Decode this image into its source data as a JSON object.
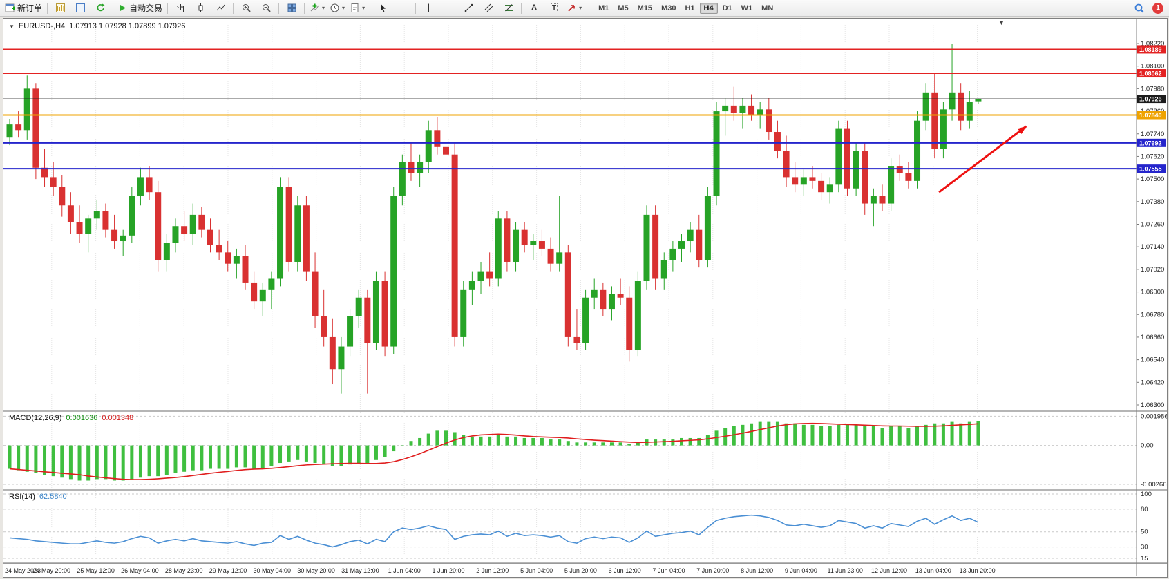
{
  "toolbar": {
    "new_order_label": "新订单",
    "autotrading_label": "自动交易",
    "text_tool_label": "A",
    "label_tool_label": "T",
    "timeframes": [
      "M1",
      "M5",
      "M15",
      "M30",
      "H1",
      "H4",
      "D1",
      "W1",
      "MN"
    ],
    "active_timeframe": "H4",
    "notification_count": "1"
  },
  "chart": {
    "title": "EURUSD-,H4",
    "ohlc": "1.07913 1.07928 1.07899 1.07926"
  },
  "indicators": {
    "macd": {
      "label": "MACD(12,26,9)",
      "value_main": "0.001636",
      "value_signal": "0.001348"
    },
    "rsi": {
      "label": "RSI(14)",
      "value": "62.5840"
    }
  },
  "colors": {
    "up": "#26a326",
    "down": "#d93131",
    "macd_bar": "#3fbf3f",
    "macd_signal": "#e01e1e",
    "rsi_line": "#4a8fd4",
    "grid": "#e4e4e4",
    "level_dash": "#c9c9c9",
    "red_line": "#e32222",
    "blue_line": "#2525cc",
    "orange_line": "#efa300",
    "current_line": "#1c1c1c"
  },
  "chart_data": [
    {
      "type": "candlestick",
      "symbol": "EURUSD-",
      "timeframe": "H4",
      "ylim": [
        1.063,
        1.0822
      ],
      "price_axis": [
        "1.08220",
        "1.08100",
        "1.07980",
        "1.07860",
        "1.07740",
        "1.07620",
        "1.07500",
        "1.07380",
        "1.07260",
        "1.07140",
        "1.07020",
        "1.06900",
        "1.06780",
        "1.06660",
        "1.06540",
        "1.06420",
        "1.06300"
      ],
      "time_axis": [
        "24 May 2023",
        "24 May 20:00",
        "25 May 12:00",
        "26 May 04:00",
        "28 May 23:00",
        "29 May 12:00",
        "30 May 04:00",
        "30 May 20:00",
        "31 May 12:00",
        "1 Jun 04:00",
        "1 Jun 20:00",
        "2 Jun 12:00",
        "5 Jun 04:00",
        "5 Jun 20:00",
        "6 Jun 12:00",
        "7 Jun 04:00",
        "7 Jun 20:00",
        "8 Jun 12:00",
        "9 Jun 04:00",
        "11 Jun 23:00",
        "12 Jun 12:00",
        "13 Jun 04:00",
        "13 Jun 20:00"
      ],
      "hlines": [
        {
          "price": 1.08189,
          "label": "1.08189",
          "color": "#e32222",
          "width": 2
        },
        {
          "price": 1.08062,
          "label": "1.08062",
          "color": "#e32222",
          "width": 2
        },
        {
          "price": 1.07926,
          "label": "1.07926",
          "color": "#1c1c1c",
          "width": 1
        },
        {
          "price": 1.0784,
          "label": "1.07840",
          "color": "#efa300",
          "width": 2
        },
        {
          "price": 1.07692,
          "label": "1.07692",
          "color": "#2525cc",
          "width": 2
        },
        {
          "price": 1.07555,
          "label": "1.07555",
          "color": "#2525cc",
          "width": 2
        }
      ],
      "arrow": {
        "from": {
          "bar": 106.5,
          "price": 1.0743
        },
        "to": {
          "bar": 116.5,
          "price": 1.0778
        },
        "color": "#ee1111"
      },
      "candles": [
        [
          1.0772,
          1.0782,
          1.0768,
          1.0779
        ],
        [
          1.0779,
          1.0786,
          1.0772,
          1.0776
        ],
        [
          1.0776,
          1.0805,
          1.0771,
          1.0798
        ],
        [
          1.0798,
          1.0801,
          1.075,
          1.0756
        ],
        [
          1.0756,
          1.0766,
          1.0746,
          1.0751
        ],
        [
          1.0751,
          1.0759,
          1.0741,
          1.0746
        ],
        [
          1.0746,
          1.0752,
          1.073,
          1.0736
        ],
        [
          1.0736,
          1.0743,
          1.0721,
          1.0727
        ],
        [
          1.0727,
          1.0736,
          1.0716,
          1.0721
        ],
        [
          1.0721,
          1.0731,
          1.0711,
          1.0729
        ],
        [
          1.0729,
          1.0739,
          1.0723,
          1.0733
        ],
        [
          1.0733,
          1.0737,
          1.0719,
          1.0723
        ],
        [
          1.0723,
          1.0731,
          1.0713,
          1.0717
        ],
        [
          1.0717,
          1.0723,
          1.0709,
          1.072
        ],
        [
          1.072,
          1.0746,
          1.0716,
          1.0741
        ],
        [
          1.0741,
          1.0756,
          1.0736,
          1.0751
        ],
        [
          1.0751,
          1.0757,
          1.0739,
          1.0743
        ],
        [
          1.0743,
          1.0749,
          1.0701,
          1.0707
        ],
        [
          1.0707,
          1.0721,
          1.0701,
          1.0716
        ],
        [
          1.0716,
          1.0729,
          1.0711,
          1.0725
        ],
        [
          1.0725,
          1.0733,
          1.0717,
          1.0721
        ],
        [
          1.0721,
          1.0737,
          1.0715,
          1.0731
        ],
        [
          1.0731,
          1.0735,
          1.0719,
          1.0723
        ],
        [
          1.0723,
          1.0729,
          1.0711,
          1.0715
        ],
        [
          1.0715,
          1.0723,
          1.0707,
          1.0711
        ],
        [
          1.0711,
          1.0717,
          1.0701,
          1.0705
        ],
        [
          1.0705,
          1.0713,
          1.0697,
          1.0709
        ],
        [
          1.0709,
          1.0715,
          1.0691,
          1.0695
        ],
        [
          1.0695,
          1.0701,
          1.0681,
          1.0685
        ],
        [
          1.0685,
          1.0695,
          1.0677,
          1.0691
        ],
        [
          1.0691,
          1.0701,
          1.0681,
          1.0697
        ],
        [
          1.0697,
          1.0751,
          1.0693,
          1.0746
        ],
        [
          1.0746,
          1.0751,
          1.0701,
          1.0706
        ],
        [
          1.0706,
          1.0741,
          1.0701,
          1.0736
        ],
        [
          1.0736,
          1.0741,
          1.0696,
          1.0701
        ],
        [
          1.0701,
          1.0711,
          1.0671,
          1.0677
        ],
        [
          1.0677,
          1.0691,
          1.0661,
          1.0666
        ],
        [
          1.0666,
          1.0676,
          1.0641,
          1.0649
        ],
        [
          1.0649,
          1.0666,
          1.0636,
          1.0661
        ],
        [
          1.0661,
          1.0681,
          1.0656,
          1.0677
        ],
        [
          1.0677,
          1.0691,
          1.0671,
          1.0687
        ],
        [
          1.0687,
          1.0691,
          1.0636,
          1.0663
        ],
        [
          1.0663,
          1.0701,
          1.0659,
          1.0696
        ],
        [
          1.0696,
          1.0701,
          1.0656,
          1.0661
        ],
        [
          1.0661,
          1.0746,
          1.0657,
          1.0741
        ],
        [
          1.0741,
          1.0763,
          1.0736,
          1.0759
        ],
        [
          1.0759,
          1.0769,
          1.0749,
          1.0753
        ],
        [
          1.0753,
          1.0763,
          1.0746,
          1.0759
        ],
        [
          1.0759,
          1.0781,
          1.0753,
          1.0776
        ],
        [
          1.0776,
          1.0783,
          1.0763,
          1.0767
        ],
        [
          1.0767,
          1.0773,
          1.0759,
          1.0763
        ],
        [
          1.0763,
          1.0769,
          1.0661,
          1.0666
        ],
        [
          1.0666,
          1.0696,
          1.0661,
          1.0691
        ],
        [
          1.0691,
          1.0701,
          1.0683,
          1.0696
        ],
        [
          1.0696,
          1.0706,
          1.0689,
          1.0701
        ],
        [
          1.0701,
          1.0711,
          1.0693,
          1.0697
        ],
        [
          1.0697,
          1.0733,
          1.0693,
          1.0729
        ],
        [
          1.0729,
          1.0733,
          1.0701,
          1.0706
        ],
        [
          1.0706,
          1.0727,
          1.0701,
          1.0723
        ],
        [
          1.0723,
          1.0727,
          1.0711,
          1.0715
        ],
        [
          1.0715,
          1.0721,
          1.0707,
          1.0717
        ],
        [
          1.0717,
          1.0723,
          1.0709,
          1.0713
        ],
        [
          1.0713,
          1.0719,
          1.0701,
          1.0705
        ],
        [
          1.0705,
          1.0741,
          1.0701,
          1.0711
        ],
        [
          1.0711,
          1.0715,
          1.0661,
          1.0666
        ],
        [
          1.0666,
          1.0681,
          1.0659,
          1.0663
        ],
        [
          1.0663,
          1.0691,
          1.0659,
          1.0687
        ],
        [
          1.0687,
          1.0697,
          1.0681,
          1.0691
        ],
        [
          1.0691,
          1.0695,
          1.0677,
          1.0681
        ],
        [
          1.0681,
          1.0693,
          1.0675,
          1.0689
        ],
        [
          1.0689,
          1.0697,
          1.0683,
          1.0687
        ],
        [
          1.0687,
          1.0693,
          1.0653,
          1.0659
        ],
        [
          1.0659,
          1.0701,
          1.0656,
          1.0696
        ],
        [
          1.0696,
          1.0736,
          1.0691,
          1.0731
        ],
        [
          1.0731,
          1.0736,
          1.0691,
          1.0697
        ],
        [
          1.0697,
          1.0711,
          1.0691,
          1.0707
        ],
        [
          1.0707,
          1.0717,
          1.0701,
          1.0713
        ],
        [
          1.0713,
          1.0721,
          1.0706,
          1.0717
        ],
        [
          1.0717,
          1.0727,
          1.0711,
          1.0723
        ],
        [
          1.0723,
          1.0731,
          1.0703,
          1.0707
        ],
        [
          1.0707,
          1.0746,
          1.0703,
          1.0741
        ],
        [
          1.0741,
          1.0791,
          1.0736,
          1.0786
        ],
        [
          1.0786,
          1.0793,
          1.0773,
          1.0789
        ],
        [
          1.0789,
          1.0799,
          1.0781,
          1.0785
        ],
        [
          1.0785,
          1.0793,
          1.0777,
          1.0789
        ],
        [
          1.0789,
          1.0795,
          1.0781,
          1.0784
        ],
        [
          1.0784,
          1.0791,
          1.0777,
          1.0787
        ],
        [
          1.0787,
          1.0793,
          1.0771,
          1.0775
        ],
        [
          1.0775,
          1.0781,
          1.0761,
          1.0765
        ],
        [
          1.0765,
          1.0773,
          1.0746,
          1.0751
        ],
        [
          1.0751,
          1.0759,
          1.0743,
          1.0747
        ],
        [
          1.0747,
          1.0755,
          1.0741,
          1.0751
        ],
        [
          1.0751,
          1.0757,
          1.0745,
          1.0749
        ],
        [
          1.0749,
          1.0753,
          1.0739,
          1.0743
        ],
        [
          1.0743,
          1.0751,
          1.0737,
          1.0747
        ],
        [
          1.0747,
          1.0781,
          1.0743,
          1.0777
        ],
        [
          1.0777,
          1.0781,
          1.0741,
          1.0745
        ],
        [
          1.0745,
          1.0769,
          1.0741,
          1.0765
        ],
        [
          1.0765,
          1.0769,
          1.0731,
          1.0737
        ],
        [
          1.0737,
          1.0745,
          1.0725,
          1.0741
        ],
        [
          1.0741,
          1.0747,
          1.0733,
          1.0737
        ],
        [
          1.0737,
          1.0761,
          1.0733,
          1.0757
        ],
        [
          1.0757,
          1.0763,
          1.0749,
          1.0753
        ],
        [
          1.0753,
          1.0759,
          1.0745,
          1.0749
        ],
        [
          1.0749,
          1.0786,
          1.0745,
          1.0781
        ],
        [
          1.0781,
          1.0801,
          1.0776,
          1.0796
        ],
        [
          1.0796,
          1.0806,
          1.0761,
          1.0766
        ],
        [
          1.0766,
          1.0791,
          1.0761,
          1.0787
        ],
        [
          1.0787,
          1.0822,
          1.0781,
          1.0796
        ],
        [
          1.0796,
          1.0801,
          1.0776,
          1.0781
        ],
        [
          1.0781,
          1.0797,
          1.0777,
          1.0791
        ],
        [
          1.07913,
          1.07928,
          1.07899,
          1.07926
        ]
      ]
    },
    {
      "type": "bar",
      "name": "MACD(12,26,9)",
      "main_last": 0.001636,
      "signal_last": 0.001348,
      "axis": [
        "0.001986",
        "0.00",
        "-0.00266"
      ],
      "values": [
        -0.0016,
        -0.0017,
        -0.0018,
        -0.0019,
        -0.002,
        -0.0021,
        -0.0022,
        -0.0023,
        -0.0024,
        -0.0024,
        -0.0023,
        -0.0023,
        -0.0024,
        -0.0024,
        -0.0023,
        -0.0022,
        -0.0021,
        -0.0021,
        -0.002,
        -0.0019,
        -0.0018,
        -0.0017,
        -0.0017,
        -0.0016,
        -0.0016,
        -0.0016,
        -0.0015,
        -0.0015,
        -0.0016,
        -0.0016,
        -0.0014,
        -0.0012,
        -0.0011,
        -0.001,
        -0.0011,
        -0.0012,
        -0.0013,
        -0.0014,
        -0.0014,
        -0.0013,
        -0.0012,
        -0.0012,
        -0.001,
        -0.0008,
        -0.0004,
        0.0,
        0.0003,
        0.0005,
        0.0008,
        0.001,
        0.001,
        0.0009,
        0.0007,
        0.0006,
        0.0006,
        0.0006,
        0.0007,
        0.0006,
        0.0006,
        0.0005,
        0.0005,
        0.0005,
        0.0004,
        0.0004,
        0.0003,
        0.0002,
        0.0002,
        0.0002,
        0.0002,
        0.0002,
        0.0002,
        0.0001,
        0.0002,
        0.0004,
        0.0004,
        0.0004,
        0.0004,
        0.0005,
        0.0005,
        0.0005,
        0.0007,
        0.001,
        0.0012,
        0.0013,
        0.0014,
        0.0015,
        0.0016,
        0.0016,
        0.0016,
        0.0015,
        0.0015,
        0.0014,
        0.0014,
        0.0013,
        0.0013,
        0.0014,
        0.0014,
        0.0014,
        0.0013,
        0.0013,
        0.0012,
        0.0013,
        0.0013,
        0.0012,
        0.0013,
        0.0014,
        0.0015,
        0.0015,
        0.0016,
        0.0015,
        0.0016,
        0.001636
      ]
    },
    {
      "type": "line",
      "name": "RSI(14)",
      "last": 62.584,
      "axis": [
        "100",
        "80",
        "50",
        "30",
        "15"
      ],
      "values": [
        42,
        41,
        40,
        38,
        37,
        36,
        35,
        34,
        34,
        36,
        38,
        36,
        35,
        37,
        41,
        44,
        42,
        35,
        38,
        40,
        38,
        41,
        38,
        37,
        36,
        35,
        37,
        34,
        32,
        35,
        36,
        45,
        40,
        44,
        39,
        35,
        33,
        30,
        33,
        37,
        39,
        34,
        40,
        37,
        50,
        55,
        53,
        55,
        58,
        55,
        53,
        40,
        44,
        46,
        47,
        46,
        51,
        44,
        48,
        45,
        46,
        45,
        43,
        45,
        37,
        35,
        41,
        43,
        41,
        43,
        42,
        36,
        42,
        51,
        44,
        46,
        48,
        49,
        51,
        46,
        56,
        65,
        68,
        70,
        71,
        72,
        71,
        69,
        65,
        59,
        58,
        60,
        58,
        56,
        58,
        65,
        63,
        61,
        55,
        58,
        55,
        61,
        59,
        57,
        64,
        68,
        60,
        66,
        71,
        65,
        68,
        62.584
      ]
    }
  ]
}
